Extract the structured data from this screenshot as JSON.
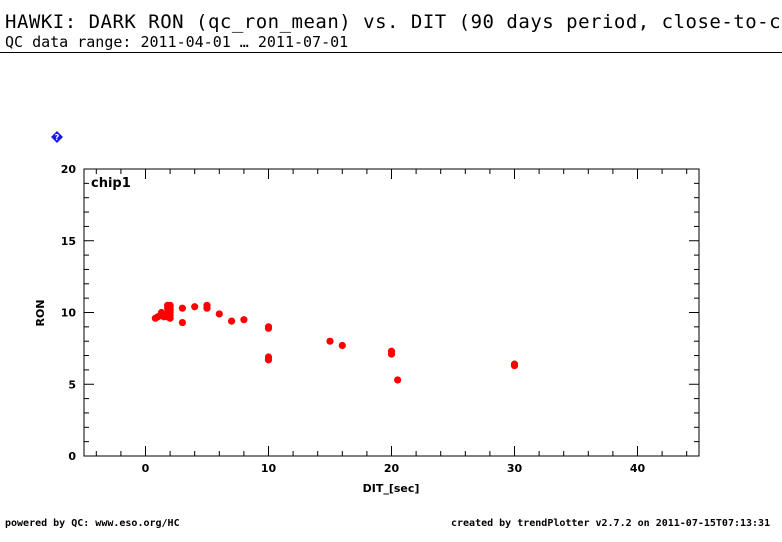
{
  "header": {
    "title": "HAWKI: DARK RON (qc_ron_mean) vs. DIT (90 days period, close-to-c",
    "subtitle": "QC data range: 2011-04-01 … 2011-07-01"
  },
  "help_icon": "help-diamond-icon",
  "chart_data": {
    "type": "scatter",
    "panel_label": "chip1",
    "xlabel": "DIT_[sec]",
    "ylabel": "RON",
    "xlim": [
      -5,
      45
    ],
    "ylim": [
      0,
      20
    ],
    "xticks": [
      0,
      10,
      20,
      30,
      40
    ],
    "yticks": [
      0,
      5,
      10,
      15,
      20
    ],
    "marker_color": "#ff0000",
    "series": [
      {
        "x": [
          0.8,
          1.0,
          1.2,
          1.3,
          1.5,
          1.5,
          1.6,
          1.8,
          1.8,
          1.8,
          1.9,
          2.0,
          2.0,
          2.0,
          2.0,
          2.0,
          2.0,
          2.0,
          3.0,
          3.0,
          4.0,
          5.0,
          5.0,
          6.0,
          7.0,
          8.0,
          10.0,
          10.0,
          10.0,
          10.0,
          15.0,
          16.0,
          20.0,
          20.0,
          20.5,
          30.0,
          30.0
        ],
        "y": [
          9.6,
          9.7,
          9.8,
          10.0,
          9.7,
          9.9,
          9.8,
          9.7,
          10.3,
          10.5,
          10.0,
          9.6,
          9.8,
          10.0,
          10.1,
          10.2,
          10.4,
          10.5,
          10.3,
          9.3,
          10.4,
          10.3,
          10.5,
          9.9,
          9.4,
          9.5,
          9.0,
          8.9,
          6.9,
          6.7,
          8.0,
          7.7,
          7.3,
          7.1,
          5.3,
          6.4,
          6.3
        ]
      }
    ]
  },
  "footer": {
    "left": "powered by QC: www.eso.org/HC",
    "right": "created by trendPlotter v2.7.2 on 2011-07-15T07:13:31"
  }
}
